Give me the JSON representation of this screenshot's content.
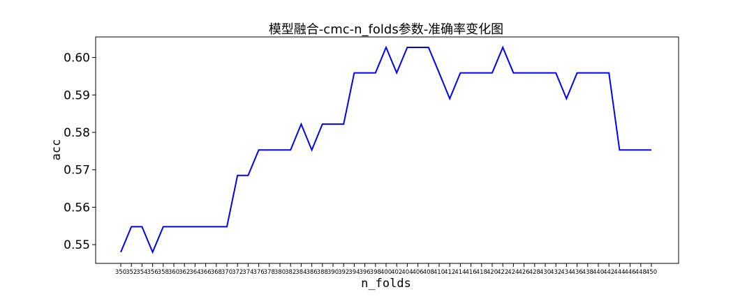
{
  "chart_data": {
    "type": "line",
    "title": "模型融合-cmc-n_folds参数-准确率变化图",
    "xlabel": "n_folds",
    "ylabel": "acc",
    "grid": false,
    "legend": "none",
    "ylim": [
      0.545,
      0.6055
    ],
    "y_ticks": [
      "0.55",
      "0.56",
      "0.57",
      "0.58",
      "0.59",
      "0.60"
    ],
    "x": [
      350,
      352,
      354,
      356,
      358,
      360,
      362,
      364,
      366,
      368,
      370,
      372,
      374,
      376,
      378,
      380,
      382,
      384,
      386,
      388,
      390,
      392,
      394,
      396,
      398,
      400,
      402,
      404,
      406,
      408,
      410,
      412,
      414,
      416,
      418,
      420,
      422,
      424,
      426,
      428,
      430,
      432,
      434,
      436,
      438,
      440,
      442,
      444,
      446,
      448,
      450
    ],
    "series": [
      {
        "color": "#0000ff",
        "values": [
          0.548,
          0.5548,
          0.5548,
          0.548,
          0.5548,
          0.5548,
          0.5548,
          0.5548,
          0.5548,
          0.5548,
          0.5548,
          0.5685,
          0.5685,
          0.5753,
          0.5753,
          0.5753,
          0.5753,
          0.5822,
          0.5753,
          0.5822,
          0.5822,
          0.5822,
          0.5959,
          0.5959,
          0.5959,
          0.6027,
          0.5959,
          0.6027,
          0.6027,
          0.6027,
          0.5959,
          0.589,
          0.5959,
          0.5959,
          0.5959,
          0.5959,
          0.6027,
          0.5959,
          0.5959,
          0.5959,
          0.5959,
          0.5959,
          0.589,
          0.5959,
          0.5959,
          0.5959,
          0.5959,
          0.5753,
          0.5753,
          0.5753,
          0.5753
        ]
      }
    ]
  }
}
